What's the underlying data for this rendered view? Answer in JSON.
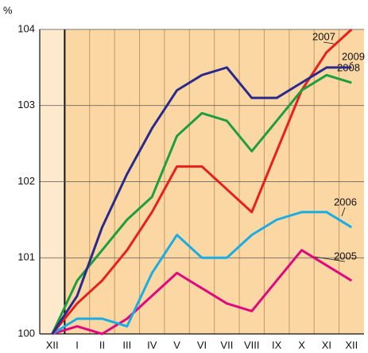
{
  "chart_data": {
    "type": "line",
    "y_label": "%",
    "categories": [
      "XII",
      "I",
      "II",
      "III",
      "IV",
      "V",
      "VI",
      "VII",
      "VIII",
      "IX",
      "X",
      "XI",
      "XII"
    ],
    "ylim": [
      100,
      104
    ],
    "yticks": [
      100,
      101,
      102,
      103,
      104
    ],
    "grid": true,
    "series": [
      {
        "name": "2005",
        "color": "#e0087e",
        "values": [
          100,
          100.1,
          100.0,
          100.2,
          100.5,
          100.8,
          100.6,
          100.4,
          100.3,
          100.7,
          101.1,
          100.9,
          100.7
        ]
      },
      {
        "name": "2006",
        "color": "#19ade3",
        "values": [
          100,
          100.2,
          100.2,
          100.1,
          100.8,
          101.3,
          101.0,
          101.0,
          101.3,
          101.5,
          101.6,
          101.6,
          101.4
        ]
      },
      {
        "name": "2007",
        "color": "#e8201c",
        "values": [
          100,
          100.4,
          100.7,
          101.1,
          101.6,
          102.2,
          102.2,
          101.9,
          101.6,
          102.4,
          103.2,
          103.7,
          104.0
        ]
      },
      {
        "name": "2008",
        "color": "#1e9e3e",
        "values": [
          100,
          100.7,
          101.1,
          101.5,
          101.8,
          102.6,
          102.9,
          102.8,
          102.4,
          102.8,
          103.2,
          103.4,
          103.3
        ]
      },
      {
        "name": "2009",
        "color": "#2b2a8c",
        "values": [
          100,
          100.5,
          101.4,
          102.1,
          102.7,
          103.2,
          103.4,
          103.5,
          103.1,
          103.1,
          103.3,
          103.5,
          103.5
        ]
      }
    ]
  }
}
